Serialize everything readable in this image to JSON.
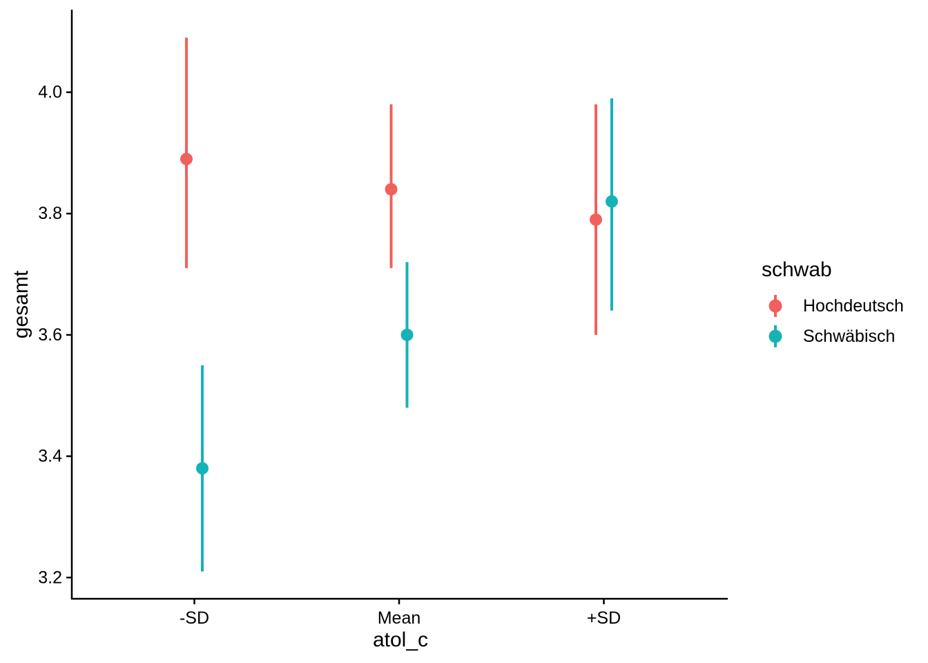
{
  "chart_data": {
    "type": "pointrange-scatter",
    "title": "",
    "xlabel": "atol_c",
    "ylabel": "gesamt",
    "categories": [
      "-SD",
      "Mean",
      "+SD"
    ],
    "y_ticks": [
      "3.2",
      "3.4",
      "3.6",
      "3.8",
      "4.0"
    ],
    "y_tick_values": [
      3.2,
      3.4,
      3.6,
      3.8,
      4.0
    ],
    "ylim": [
      3.165,
      4.135
    ],
    "grid": false,
    "background": "#ffffff",
    "axis_color": "#000000",
    "legend": {
      "title": "schwab",
      "position": "right"
    },
    "series": [
      {
        "name": "Hochdeutsch",
        "color": "#F2605B",
        "points": [
          {
            "category": "-SD",
            "y": 3.89,
            "ymin": 3.71,
            "ymax": 4.09
          },
          {
            "category": "Mean",
            "y": 3.84,
            "ymin": 3.71,
            "ymax": 3.98
          },
          {
            "category": "+SD",
            "y": 3.79,
            "ymin": 3.6,
            "ymax": 3.98
          }
        ]
      },
      {
        "name": "Schwäbisch",
        "color": "#16B2B6",
        "points": [
          {
            "category": "-SD",
            "y": 3.38,
            "ymin": 3.21,
            "ymax": 3.55
          },
          {
            "category": "Mean",
            "y": 3.6,
            "ymin": 3.48,
            "ymax": 3.72
          },
          {
            "category": "+SD",
            "y": 3.82,
            "ymin": 3.64,
            "ymax": 3.99
          }
        ]
      }
    ]
  }
}
